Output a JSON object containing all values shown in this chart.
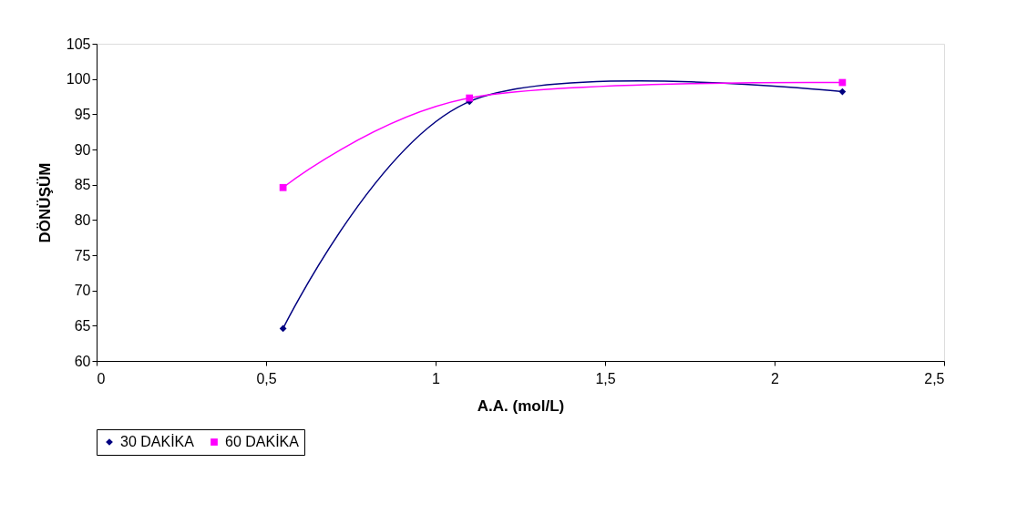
{
  "chart_data": {
    "type": "line",
    "xlabel": "A.A. (mol/L)",
    "ylabel": "DÖNÜŞÜM",
    "x": [
      0.55,
      1.1,
      2.2
    ],
    "series": [
      {
        "name": "30 DAKİKA",
        "color": "#000080",
        "marker": "diamond",
        "values": [
          64.6,
          96.8,
          98.2
        ]
      },
      {
        "name": "60 DAKİKA",
        "color": "#ff00ff",
        "marker": "square",
        "values": [
          84.6,
          97.3,
          99.5
        ]
      }
    ],
    "xlim": [
      0,
      2.5
    ],
    "xticks": [
      0,
      {
        "value": 0.5,
        "label": "0,5"
      },
      1,
      {
        "value": 1.5,
        "label": "1,5"
      },
      2,
      {
        "value": 2.5,
        "label": "2,5"
      }
    ],
    "ylim": [
      60,
      105
    ],
    "yticks": [
      60,
      65,
      70,
      75,
      80,
      85,
      90,
      95,
      100,
      105
    ],
    "grid": false,
    "legend": "bottom",
    "line_style": "solid"
  }
}
